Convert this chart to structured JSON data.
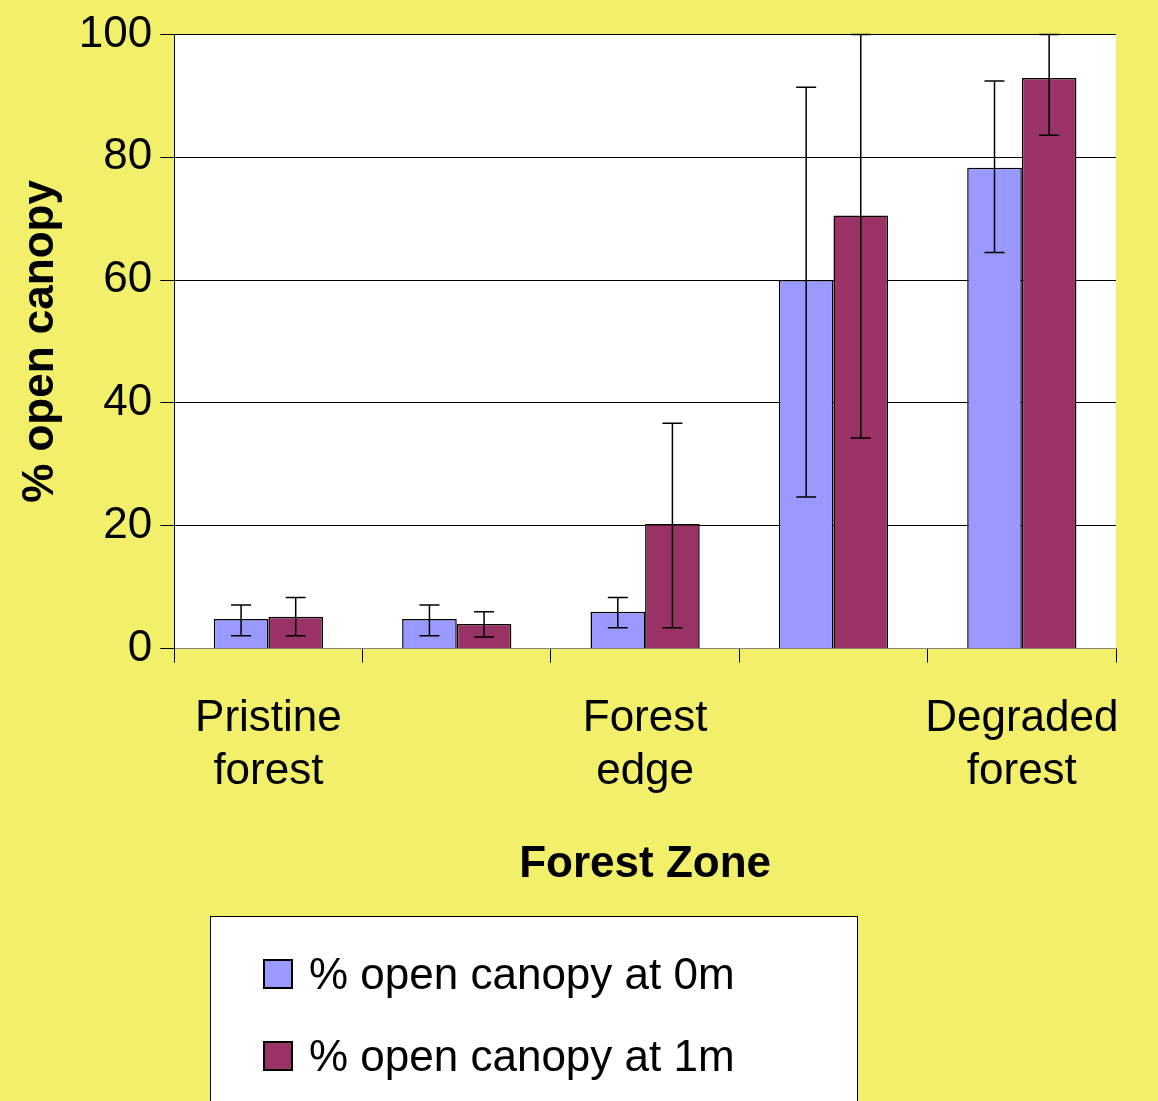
{
  "chart_data": {
    "type": "bar",
    "xlabel": "Forest Zone",
    "ylabel": "% open canopy",
    "categories": [
      "Pristine forest",
      null,
      "Forest edge",
      null,
      "Degraded forest"
    ],
    "series": [
      {
        "name": "% open canopy at 0m",
        "color": "#9999ff",
        "values": [
          4.8,
          4.8,
          6.0,
          60,
          78.3
        ],
        "errors": [
          [
            2.1,
            7.1
          ],
          [
            2.1,
            7.1
          ],
          [
            3.4,
            8.3
          ],
          [
            24.7,
            91.4
          ],
          [
            64.5,
            92.4
          ]
        ]
      },
      {
        "name": "% open canopy at 1m",
        "color": "#993366",
        "values": [
          5.2,
          4.0,
          20.3,
          70.5,
          92.9
        ],
        "errors": [
          [
            2.1,
            8.3
          ],
          [
            1.9,
            6.0
          ],
          [
            3.4,
            36.7
          ],
          [
            34.3,
            100
          ],
          [
            83.6,
            100
          ]
        ]
      }
    ],
    "ylim": [
      0,
      100
    ],
    "yticks": [
      0,
      20,
      40,
      60,
      80,
      100
    ],
    "grid": "y",
    "legend": "bottom"
  }
}
